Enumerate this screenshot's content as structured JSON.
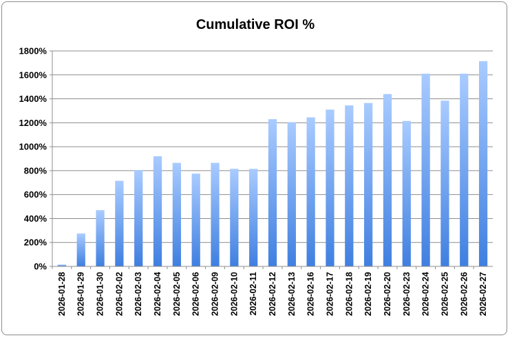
{
  "chart_data": {
    "type": "bar",
    "title": "Cumulative ROI %",
    "xlabel": "",
    "ylabel": "",
    "categories": [
      "2026-01-28",
      "2026-01-29",
      "2026-01-30",
      "2026-02-02",
      "2026-02-03",
      "2026-02-04",
      "2026-02-05",
      "2026-02-06",
      "2026-02-09",
      "2026-02-10",
      "2026-02-11",
      "2026-02-12",
      "2026-02-13",
      "2026-02-16",
      "2026-02-17",
      "2026-02-18",
      "2026-02-19",
      "2026-02-20",
      "2026-02-23",
      "2026-02-24",
      "2026-02-25",
      "2026-02-26",
      "2026-02-27"
    ],
    "values": [
      15,
      275,
      470,
      715,
      805,
      920,
      865,
      775,
      865,
      815,
      815,
      1230,
      1205,
      1245,
      1310,
      1345,
      1365,
      1440,
      1215,
      1610,
      1385,
      1610,
      1715
    ],
    "ylim": [
      0,
      1800
    ],
    "yticks": [
      0,
      200,
      400,
      600,
      800,
      1000,
      1200,
      1400,
      1600,
      1800
    ],
    "ytick_suffix": "%",
    "grid": true,
    "legend": "none",
    "colors": {
      "bar_top": "#a9cbff",
      "bar_bottom": "#3f7fe0",
      "grid": "#8c8c8c",
      "axis": "#8c8c8c"
    }
  }
}
